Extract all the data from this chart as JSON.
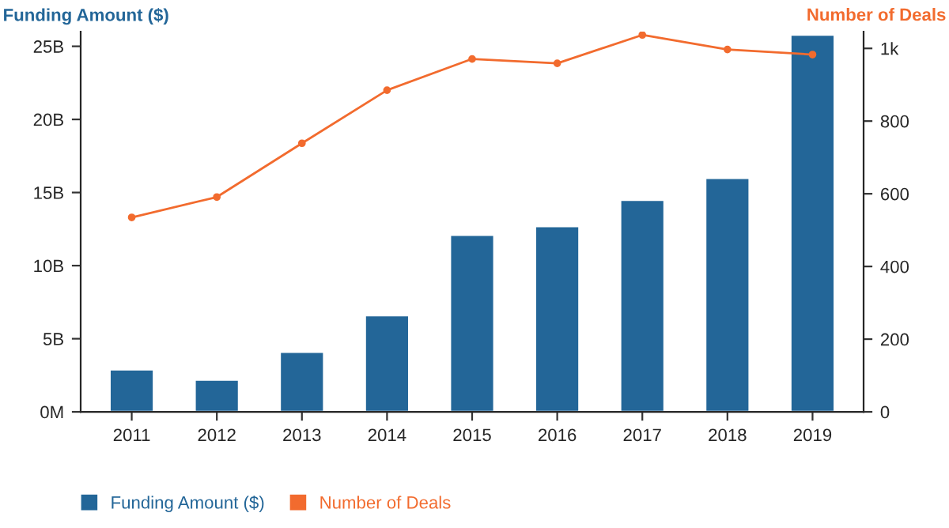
{
  "chart_data": {
    "type": "bar",
    "categories": [
      "2011",
      "2012",
      "2013",
      "2014",
      "2015",
      "2016",
      "2017",
      "2018",
      "2019"
    ],
    "series": [
      {
        "name": "Funding Amount ($)",
        "color": "#236698",
        "values": [
          2.9,
          2.2,
          4.1,
          6.6,
          12.1,
          12.7,
          14.5,
          16.0,
          25.8
        ]
      },
      {
        "name": "Number of Deals",
        "type": "line",
        "axis": "y2",
        "color": "#f26b2e",
        "marker": "circle",
        "values": [
          535,
          591,
          739,
          885,
          971,
          959,
          1037,
          997,
          983
        ]
      }
    ],
    "ylabel": "Funding Amount ($)",
    "y2label": "Number of Deals",
    "ylim": [
      0,
      26
    ],
    "yticks": [
      {
        "value": 0,
        "label": "0M"
      },
      {
        "value": 5,
        "label": "5B"
      },
      {
        "value": 10,
        "label": "10B"
      },
      {
        "value": 15,
        "label": "15B"
      },
      {
        "value": 20,
        "label": "20B"
      },
      {
        "value": 25,
        "label": "25B"
      }
    ],
    "y2lim": [
      0,
      1046
    ],
    "y2ticks": [
      0,
      200,
      400,
      600,
      800,
      {
        "value": 1000,
        "label": "1k"
      }
    ],
    "legend": "bottom left",
    "grid": false
  }
}
